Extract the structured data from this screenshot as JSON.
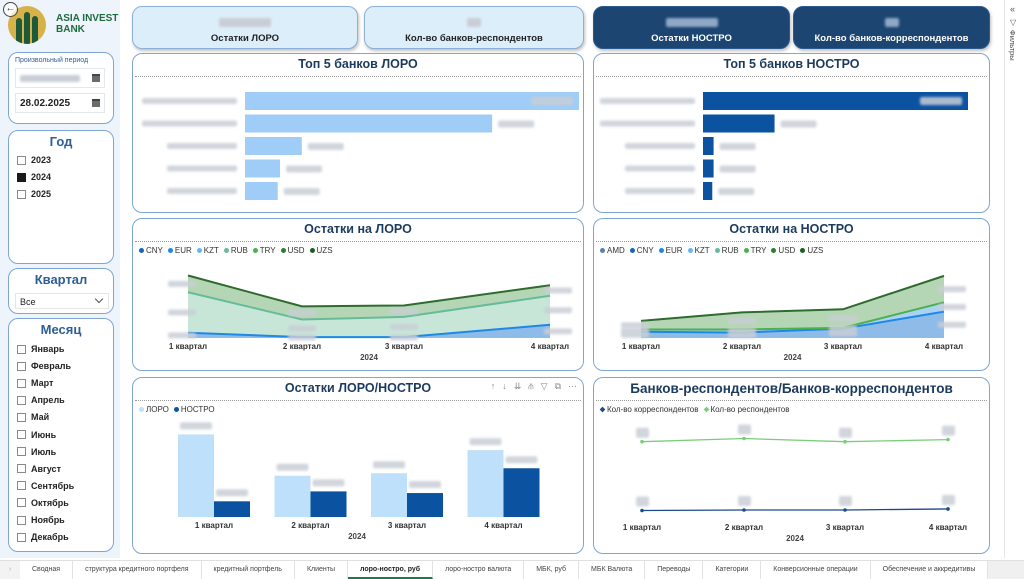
{
  "logo": {
    "line1": "ASIA INVEST",
    "line2": "BANK"
  },
  "sidebar": {
    "date_panel": {
      "label": "Произвольный период",
      "end_date": "28.02.2025"
    },
    "year": {
      "title": "Год",
      "items": [
        {
          "label": "2023",
          "checked": false
        },
        {
          "label": "2024",
          "checked": true
        },
        {
          "label": "2025",
          "checked": false
        }
      ]
    },
    "quarter": {
      "title": "Квартал",
      "selected": "Все"
    },
    "month": {
      "title": "Месяц",
      "items": [
        {
          "label": "Январь"
        },
        {
          "label": "Февраль"
        },
        {
          "label": "Март"
        },
        {
          "label": "Апрель"
        },
        {
          "label": "Май"
        },
        {
          "label": "Июнь"
        },
        {
          "label": "Июль"
        },
        {
          "label": "Август"
        },
        {
          "label": "Сентябрь"
        },
        {
          "label": "Октябрь"
        },
        {
          "label": "Ноябрь"
        },
        {
          "label": "Декабрь"
        }
      ]
    }
  },
  "kpis": [
    {
      "label": "Остатки ЛОРО",
      "style": "light"
    },
    {
      "label": "Кол-во банков-респондентов",
      "style": "light"
    },
    {
      "label": "Остатки НОСТРО",
      "style": "dark"
    },
    {
      "label": "Кол-во банков-корреспондентов",
      "style": "dark"
    }
  ],
  "colors": {
    "loro_bar": "#9fcdf7",
    "nostro_bar": "#0b52a0",
    "loro_light": "#bfe0fa",
    "title": "#1c3a5e",
    "accent_green": "#1c7a53"
  },
  "filter_rail": {
    "label": "Фильтры"
  },
  "tabs": [
    {
      "label": "Сводная"
    },
    {
      "label": "структура кредитного портфеля"
    },
    {
      "label": "кредитный портфель"
    },
    {
      "label": "Клиенты"
    },
    {
      "label": "лоро-ностро, руб",
      "active": true
    },
    {
      "label": "лоро-ностро валюта"
    },
    {
      "label": "МБК, руб"
    },
    {
      "label": "МБК Валюта"
    },
    {
      "label": "Переводы"
    },
    {
      "label": "Категории"
    },
    {
      "label": "Конверсионные операции"
    },
    {
      "label": "Обеспечение и аккредитивы"
    }
  ],
  "chart_data": [
    {
      "id": "top5-loro",
      "type": "bar",
      "orientation": "horizontal",
      "title": "Топ 5 банков ЛОРО",
      "categories_redacted": true,
      "values": [
        100,
        74,
        17,
        10.5,
        9.8
      ],
      "color": "#9fcdf7"
    },
    {
      "id": "top5-nostro",
      "type": "bar",
      "orientation": "horizontal",
      "title": "Топ 5 банков НОСТРО",
      "categories_redacted": true,
      "values": [
        100,
        27,
        4,
        4,
        3.5
      ],
      "color": "#0b52a0"
    },
    {
      "id": "loro-area",
      "type": "area",
      "stacked": true,
      "title": "Остатки на ЛОРО",
      "x": [
        "1 квартал",
        "2 квартал",
        "3 квартал",
        "4 квартал"
      ],
      "xlabel": "2024",
      "legend": [
        {
          "name": "CNY",
          "color": "#1565c0"
        },
        {
          "name": "EUR",
          "color": "#1e88e5"
        },
        {
          "name": "KZT",
          "color": "#64b5f6"
        },
        {
          "name": "RUB",
          "color": "#66bb99"
        },
        {
          "name": "TRY",
          "color": "#4caf50"
        },
        {
          "name": "USD",
          "color": "#2e7d32"
        },
        {
          "name": "UZS",
          "color": "#1b5e20"
        }
      ],
      "series": [
        {
          "name": "EUR",
          "values": [
            6,
            1,
            1,
            15
          ],
          "fill": "#8fbbe8",
          "stroke": "#1e88e5"
        },
        {
          "name": "RUB",
          "values": [
            46,
            20,
            23,
            33
          ],
          "fill": "#c7e6d8",
          "stroke": "#66bb99"
        },
        {
          "name": "UZS",
          "values": [
            19,
            15,
            13,
            12
          ],
          "fill": "#b5d6b4",
          "stroke": "#2e6b2e"
        }
      ],
      "ylim": [
        0,
        75
      ]
    },
    {
      "id": "nostro-area",
      "type": "area",
      "stacked": true,
      "title": "Остатки на НОСТРО",
      "x": [
        "1 квартал",
        "2 квартал",
        "3 квартал",
        "4 квартал"
      ],
      "xlabel": "2024",
      "legend": [
        {
          "name": "AMD",
          "color": "#5a7fa8"
        },
        {
          "name": "CNY",
          "color": "#1565c0"
        },
        {
          "name": "EUR",
          "color": "#1e88e5"
        },
        {
          "name": "KZT",
          "color": "#64b5f6"
        },
        {
          "name": "RUB",
          "color": "#66bb99"
        },
        {
          "name": "TRY",
          "color": "#4caf50"
        },
        {
          "name": "USD",
          "color": "#2e7d32"
        },
        {
          "name": "UZS",
          "color": "#1b5e20"
        }
      ],
      "series": [
        {
          "name": "EUR",
          "values": [
            8,
            7,
            12,
            34
          ],
          "fill": "#8fbbe8",
          "stroke": "#1e88e5"
        },
        {
          "name": "KZT",
          "values": [
            3,
            4,
            1,
            12
          ],
          "fill": "#a9d2f5",
          "stroke": "#4caf50"
        },
        {
          "name": "UZS",
          "values": [
            11,
            22,
            24,
            34
          ],
          "fill": "#b5d6b4",
          "stroke": "#2e6b2e"
        }
      ],
      "ylim": [
        0,
        85
      ]
    },
    {
      "id": "loro-nostro-bars",
      "type": "bar",
      "title": "Остатки ЛОРО/НОСТРО",
      "categories": [
        "1 квартал",
        "2 квартал",
        "3 квартал",
        "4 квартал"
      ],
      "xlabel": "2024",
      "series": [
        {
          "name": "ЛОРО",
          "values": [
            100,
            50,
            53,
            81
          ],
          "color": "#bfe0fa"
        },
        {
          "name": "НОСТРО",
          "values": [
            19,
            31,
            29,
            59
          ],
          "color": "#0b52a0"
        }
      ],
      "ylim": [
        0,
        115
      ]
    },
    {
      "id": "counts-lines",
      "type": "line",
      "title": "Банков-респондентов/Банков-корреспондентов",
      "categories": [
        "1 квартал",
        "2 квартал",
        "3 квартал",
        "4 квартал"
      ],
      "xlabel": "2024",
      "series": [
        {
          "name": "Кол-во корреспондентов",
          "values": [
            23,
            23.5,
            23.5,
            24.5
          ],
          "color": "#1c4a8a"
        },
        {
          "name": "Кол-во респондентов",
          "values": [
            88,
            91,
            88,
            90
          ],
          "color": "#7ccc7c"
        }
      ],
      "ylim": [
        15,
        100
      ]
    }
  ],
  "visual_tools": {
    "up": "↑",
    "down": "↓",
    "drill_all": "⇊",
    "expand": "⫛",
    "filter": "▽",
    "focus": "⧉",
    "more": "···"
  }
}
